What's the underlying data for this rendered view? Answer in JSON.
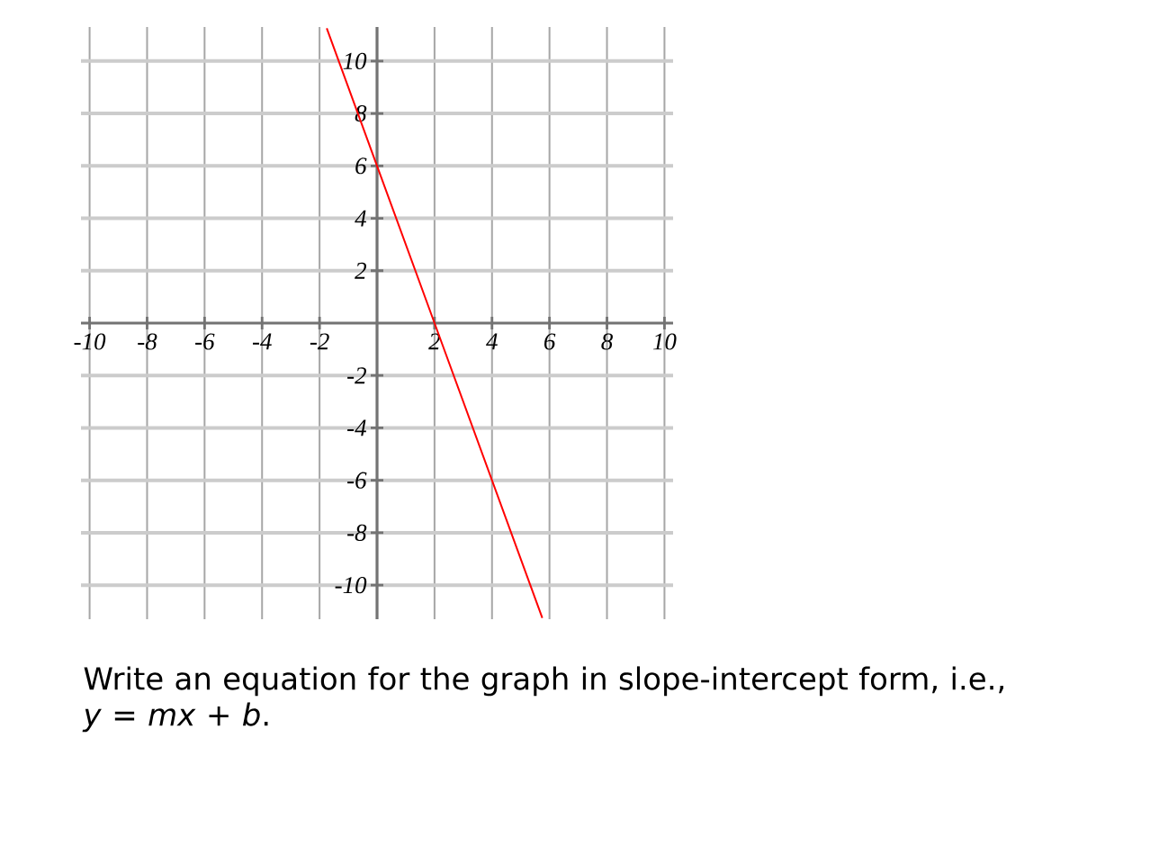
{
  "chart_data": {
    "type": "line",
    "x": [
      -1.75,
      0,
      2,
      5.75
    ],
    "values": [
      11.25,
      6,
      0,
      -11.25
    ],
    "color": "#ff0000",
    "line_style": "solid",
    "xlim": [
      -10.3,
      10.3
    ],
    "ylim": [
      -11.3,
      11.3
    ],
    "xticks": [
      -10,
      -8,
      -6,
      -4,
      -2,
      2,
      4,
      6,
      8,
      10
    ],
    "yticks": [
      -10,
      -8,
      -6,
      -4,
      -2,
      2,
      4,
      6,
      8,
      10
    ],
    "grid": true,
    "annotations": [
      "Write an equation for the graph in slope-intercept form, i.e., *y* = *mx* + *b*."
    ]
  }
}
